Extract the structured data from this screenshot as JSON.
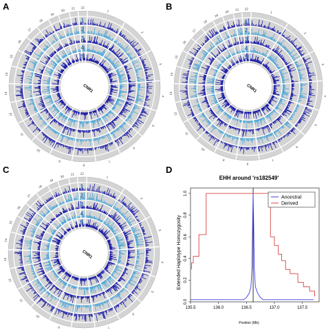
{
  "panels": [
    {
      "label": "A",
      "center_label": "CNR1",
      "tracks": [
        "1",
        "2",
        "3",
        "4",
        "5"
      ],
      "chromosomes": [
        "1",
        "2",
        "3",
        "4",
        "5",
        "6",
        "7",
        "8",
        "9",
        "10",
        "11",
        "12",
        "13",
        "14",
        "15",
        "16",
        "17",
        "18",
        "19",
        "20",
        "21",
        "22"
      ]
    },
    {
      "label": "B",
      "center_label": "CNR1",
      "tracks": [
        "1",
        "2",
        "3",
        "4",
        "5"
      ],
      "chromosomes": [
        "1",
        "2",
        "3",
        "4",
        "5",
        "6",
        "7",
        "8",
        "9",
        "10",
        "11",
        "12",
        "13",
        "14",
        "15",
        "16",
        "17",
        "18",
        "19",
        "20",
        "21",
        "22"
      ]
    },
    {
      "label": "C",
      "center_label": "CNR1",
      "tracks": [
        "1",
        "2",
        "3",
        "4",
        "5"
      ],
      "chromosomes": [
        "1",
        "2",
        "3",
        "4",
        "5",
        "6",
        "7",
        "8",
        "9",
        "10",
        "11",
        "12",
        "13",
        "14",
        "15",
        "16",
        "17",
        "18",
        "19",
        "20",
        "21",
        "22"
      ]
    }
  ],
  "ehh_panel_label": "D",
  "chart_data": {
    "type": "line",
    "title": "EHH around 'rs182549'",
    "xlabel": "Position (Mb)",
    "ylabel": "Extended Haplotype Homozygosity",
    "xlim": [
      135.5,
      137.8
    ],
    "ylim": [
      0,
      1.05
    ],
    "xticks": [
      "135.5",
      "136.0",
      "136.5",
      "137.0",
      "137.5"
    ],
    "yticks": [
      "0.0",
      "0.2",
      "0.4",
      "0.6",
      "0.8",
      "1.0"
    ],
    "core_snp_position": 136.62,
    "legend_position": "top-right",
    "series": [
      {
        "name": "Ancestral",
        "color": "#3a3adf",
        "x": [
          135.5,
          136.45,
          136.5,
          136.55,
          136.58,
          136.6,
          136.61,
          136.62,
          136.63,
          136.64,
          136.66,
          136.7,
          136.75,
          136.8,
          137.7
        ],
        "y": [
          0.02,
          0.02,
          0.04,
          0.08,
          0.14,
          0.32,
          0.7,
          1.0,
          0.7,
          0.32,
          0.14,
          0.08,
          0.04,
          0.02,
          0.02
        ]
      },
      {
        "name": "Derived",
        "color": "#d94040",
        "x": [
          135.52,
          135.52,
          135.55,
          135.55,
          135.65,
          135.65,
          135.78,
          135.78,
          136.93,
          136.93,
          137.0,
          137.0,
          137.07,
          137.07,
          137.13,
          137.13,
          137.2,
          137.2,
          137.28,
          137.28,
          137.42,
          137.42,
          137.52,
          137.52,
          137.63,
          137.63,
          137.72,
          137.72
        ],
        "y": [
          0.3,
          0.36,
          0.36,
          0.42,
          0.42,
          0.62,
          0.62,
          1.0,
          1.0,
          0.6,
          0.6,
          0.52,
          0.52,
          0.44,
          0.44,
          0.38,
          0.38,
          0.3,
          0.3,
          0.26,
          0.26,
          0.18,
          0.18,
          0.14,
          0.14,
          0.1,
          0.1,
          0.05
        ]
      }
    ]
  }
}
